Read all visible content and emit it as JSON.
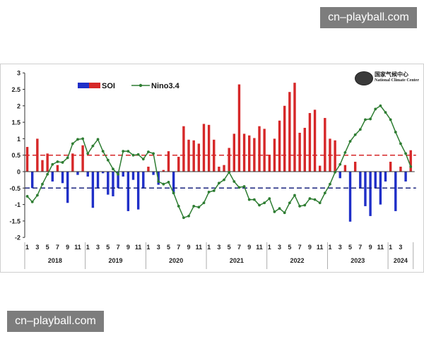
{
  "watermarks": {
    "top": "cn–playball.com",
    "bottom": "cn–playball.com"
  },
  "logo": {
    "cn": "国家气候中心",
    "en": "National Climate Center"
  },
  "chart_data": {
    "type": "bar+line",
    "title": "",
    "xlabel": "",
    "ylabel": "",
    "ylim": [
      -2,
      3
    ],
    "yticks": [
      -2,
      -1.5,
      -1,
      -0.5,
      0,
      0.5,
      1,
      1.5,
      2,
      2.5,
      3
    ],
    "grid": false,
    "legend": {
      "position": "top-left",
      "entries": [
        "SOI",
        "Nino3.4"
      ]
    },
    "colors": {
      "soi_positive": "#d62728",
      "soi_negative": "#1f2fc8",
      "nino": "#2e7d32",
      "threshold_positive": "#d62728",
      "threshold_negative": "#1a237e"
    },
    "thresholds": [
      0.5,
      -0.5
    ],
    "month_ticks": [
      "1",
      "3",
      "5",
      "7",
      "9",
      "11",
      "1",
      "3",
      "5",
      "7",
      "9",
      "11",
      "1",
      "3",
      "5",
      "7",
      "9",
      "11",
      "1",
      "3",
      "5",
      "7",
      "9",
      "11",
      "1",
      "3",
      "5",
      "7",
      "9",
      "11",
      "1",
      "3",
      "5",
      "7",
      "9",
      "11",
      "1",
      "3"
    ],
    "years": [
      {
        "label": "2018",
        "months": 12
      },
      {
        "label": "2019",
        "months": 12
      },
      {
        "label": "2020",
        "months": 12
      },
      {
        "label": "2021",
        "months": 12
      },
      {
        "label": "2022",
        "months": 12
      },
      {
        "label": "2023",
        "months": 12
      },
      {
        "label": "2024",
        "months": 5
      }
    ],
    "series": [
      {
        "name": "SOI",
        "type": "bar",
        "values": [
          0.75,
          -0.5,
          1.0,
          0.35,
          0.55,
          -0.3,
          0.2,
          -0.35,
          -0.95,
          0.55,
          -0.1,
          0.8,
          -0.15,
          -1.1,
          -0.5,
          -0.05,
          -0.7,
          -0.75,
          -0.5,
          -0.15,
          -1.2,
          -0.25,
          -1.15,
          -0.5,
          0.15,
          -0.1,
          -0.4,
          0.05,
          0.62,
          -0.68,
          0.45,
          1.38,
          0.97,
          0.95,
          0.85,
          1.45,
          1.42,
          0.97,
          0.15,
          0.2,
          0.72,
          1.15,
          2.65,
          1.15,
          1.1,
          1.02,
          1.38,
          1.3,
          0.5,
          1.0,
          1.55,
          2.0,
          2.42,
          2.7,
          1.18,
          1.33,
          1.78,
          1.88,
          0.18,
          1.63,
          1.0,
          0.95,
          -0.2,
          0.2,
          -1.52,
          0.3,
          -0.5,
          -1.05,
          -1.35,
          -0.5,
          -1.0,
          -0.3,
          0.3,
          -1.2,
          0.15,
          -0.3,
          0.65
        ]
      },
      {
        "name": "Nino3.4",
        "type": "line",
        "values": [
          -0.75,
          -0.92,
          -0.72,
          -0.38,
          -0.08,
          0.22,
          0.3,
          0.28,
          0.42,
          0.85,
          0.98,
          1.0,
          0.55,
          0.78,
          0.98,
          0.62,
          0.35,
          0.08,
          -0.08,
          0.62,
          0.62,
          0.5,
          0.52,
          0.38,
          0.6,
          0.55,
          -0.3,
          -0.38,
          -0.32,
          -0.65,
          -1.05,
          -1.4,
          -1.35,
          -1.05,
          -1.08,
          -0.95,
          -0.62,
          -0.58,
          -0.35,
          -0.25,
          -0.02,
          -0.3,
          -0.48,
          -0.45,
          -0.85,
          -0.85,
          -1.02,
          -0.95,
          -0.82,
          -1.22,
          -1.12,
          -1.25,
          -0.95,
          -0.72,
          -1.05,
          -1.02,
          -0.82,
          -0.85,
          -0.95,
          -0.65,
          -0.38,
          -0.02,
          0.22,
          0.58,
          0.92,
          1.12,
          1.28,
          1.58,
          1.6,
          1.9,
          2.0,
          1.8,
          1.58,
          1.2,
          0.85,
          0.55,
          0.15
        ]
      }
    ]
  }
}
